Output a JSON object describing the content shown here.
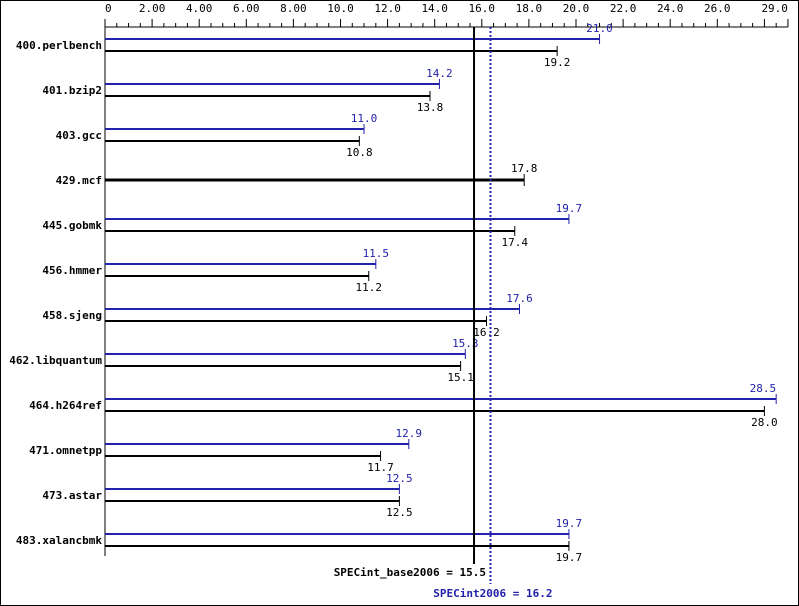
{
  "chart_data": {
    "type": "bar",
    "orientation": "horizontal",
    "xlim": [
      0,
      29.0
    ],
    "tick_labels": [
      "0",
      "2.00",
      "4.00",
      "6.00",
      "8.00",
      "10.0",
      "12.0",
      "14.0",
      "16.0",
      "18.0",
      "20.0",
      "22.0",
      "24.0",
      "26.0",
      "29.0"
    ],
    "categories": [
      "400.perlbench",
      "401.bzip2",
      "403.gcc",
      "429.mcf",
      "445.gobmk",
      "456.hmmer",
      "458.sjeng",
      "462.libquantum",
      "464.h264ref",
      "471.omnetpp",
      "473.astar",
      "483.xalancbmk"
    ],
    "series": [
      {
        "name": "peak",
        "color": "#2222aa",
        "values": [
          21.0,
          14.2,
          11.0,
          null,
          19.7,
          11.5,
          17.6,
          15.3,
          28.5,
          12.9,
          12.5,
          19.7
        ],
        "labels": [
          "21.0",
          "14.2",
          "11.0",
          "",
          "19.7",
          "11.5",
          "17.6",
          "15.3",
          "28.5",
          "12.9",
          "12.5",
          "19.7"
        ]
      },
      {
        "name": "base",
        "color": "#000000",
        "values": [
          19.2,
          13.8,
          10.8,
          17.8,
          17.4,
          11.2,
          16.2,
          15.1,
          28.0,
          11.7,
          12.5,
          19.7
        ],
        "labels": [
          "19.2",
          "13.8",
          "10.8",
          "17.8",
          "17.4",
          "11.2",
          "16.2",
          "15.1",
          "28.0",
          "11.7",
          "12.5",
          "19.7"
        ]
      }
    ],
    "summary": {
      "base": {
        "value": 15.5,
        "label": "SPECint_base2006 = 15.5",
        "color": "#000000"
      },
      "peak": {
        "value": 16.2,
        "label": "SPECint2006 = 16.2",
        "color": "#2222aa"
      }
    }
  }
}
